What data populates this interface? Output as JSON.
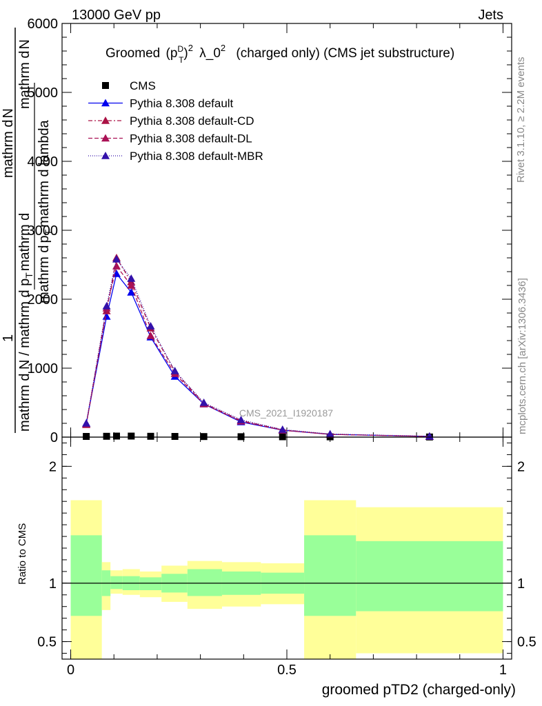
{
  "header": {
    "left": "13000 GeV pp",
    "right": "Jets"
  },
  "side": {
    "rivet": "Rivet 3.1.10, ≥ 2.2M events",
    "mcplots": "mcplots.cern.ch [arXiv:1306.3436]"
  },
  "main_ylabel": {
    "one": "1",
    "num1": "mathrm d",
    "num2": "N",
    "den": "mathrm d N / mathrm d p",
    "den_sub": "T",
    "den2": "mathrm d",
    "num3": "mathrm d",
    "num4": "N",
    "den3": "mathrm d",
    "den4": "p",
    "den5": "T",
    "den6": "mathrm d lambda"
  },
  "watermark": "CMS_2021_I1920187",
  "colors": {
    "cms": "#000000",
    "default": "#0000ee",
    "cd": "#aa1144",
    "dl": "#aa1155",
    "mbr": "#3311aa",
    "band_outer": "#ffff99",
    "band_inner": "#99ff99"
  },
  "chart_data": [
    {
      "type": "line",
      "title_parts": {
        "pre": "Groomed",
        "p": "p",
        "psup": "D",
        "psub": "T",
        "sq": "2",
        "lam": "λ_0",
        "lamsup": "2",
        "post": "(charged only) (CMS jet substructure)"
      },
      "xlabel": "",
      "ylabel": "",
      "xlim": [
        -0.02,
        1.02
      ],
      "ylim": [
        0,
        6000
      ],
      "yticks": [
        {
          "v": 0,
          "label": "0"
        },
        {
          "v": 1000,
          "label": "1000"
        },
        {
          "v": 2000,
          "label": "2000"
        },
        {
          "v": 3000,
          "label": "3000"
        },
        {
          "v": 4000,
          "label": "4000"
        },
        {
          "v": 5000,
          "label": "5000"
        },
        {
          "v": 6000,
          "label": "6000"
        }
      ],
      "x": [
        0.036,
        0.083,
        0.106,
        0.14,
        0.185,
        0.241,
        0.308,
        0.394,
        0.49,
        0.6,
        0.83
      ],
      "series": [
        {
          "name": "CMS",
          "key": "cms",
          "marker": "square",
          "values": [
            10,
            12,
            15,
            15,
            12,
            10,
            8,
            6,
            5,
            4,
            2
          ]
        },
        {
          "name": "Pythia 8.308 default",
          "key": "default",
          "marker": "triangle",
          "dash": "",
          "values": [
            200,
            1750,
            2370,
            2100,
            1450,
            880,
            480,
            220,
            100,
            40,
            10
          ]
        },
        {
          "name": "Pythia 8.308 default-CD",
          "key": "cd",
          "marker": "triangle",
          "dash": "6,3,2,3",
          "values": [
            180,
            1830,
            2600,
            2250,
            1580,
            950,
            490,
            240,
            105,
            40,
            10
          ]
        },
        {
          "name": "Pythia 8.308 default-DL",
          "key": "dl",
          "marker": "triangle",
          "dash": "6,3",
          "values": [
            190,
            1870,
            2480,
            2200,
            1470,
            920,
            480,
            230,
            100,
            40,
            10
          ]
        },
        {
          "name": "Pythia 8.308 default-MBR",
          "key": "mbr",
          "marker": "triangle",
          "dash": "1,2",
          "values": [
            200,
            1900,
            2580,
            2300,
            1610,
            960,
            500,
            250,
            110,
            45,
            12
          ]
        }
      ]
    },
    {
      "type": "area",
      "xlabel": "groomed pTD2 (charged-only)",
      "ylabel": "Ratio to CMS",
      "xlim": [
        -0.02,
        1.02
      ],
      "ylim": [
        0.35,
        2.25
      ],
      "xticks": [
        {
          "v": 0,
          "label": "0"
        },
        {
          "v": 0.5,
          "label": "0.5"
        },
        {
          "v": 1,
          "label": "1"
        }
      ],
      "yticks": [
        {
          "v": 0.5,
          "label": "0.5"
        },
        {
          "v": 1,
          "label": "1"
        },
        {
          "v": 2,
          "label": "2"
        }
      ],
      "bins": [
        {
          "lo": 0.0,
          "hi": 0.072,
          "outer": [
            0.35,
            1.71
          ],
          "inner": [
            0.72,
            1.41
          ]
        },
        {
          "lo": 0.072,
          "hi": 0.092,
          "outer": [
            0.77,
            1.18
          ],
          "inner": [
            0.89,
            1.11
          ]
        },
        {
          "lo": 0.092,
          "hi": 0.12,
          "outer": [
            0.91,
            1.11
          ],
          "inner": [
            0.95,
            1.06
          ]
        },
        {
          "lo": 0.12,
          "hi": 0.16,
          "outer": [
            0.9,
            1.12
          ],
          "inner": [
            0.94,
            1.06
          ]
        },
        {
          "lo": 0.16,
          "hi": 0.21,
          "outer": [
            0.88,
            1.1
          ],
          "inner": [
            0.94,
            1.05
          ]
        },
        {
          "lo": 0.21,
          "hi": 0.27,
          "outer": [
            0.84,
            1.15
          ],
          "inner": [
            0.92,
            1.08
          ]
        },
        {
          "lo": 0.27,
          "hi": 0.35,
          "outer": [
            0.78,
            1.19
          ],
          "inner": [
            0.89,
            1.12
          ]
        },
        {
          "lo": 0.35,
          "hi": 0.44,
          "outer": [
            0.8,
            1.18
          ],
          "inner": [
            0.9,
            1.1
          ]
        },
        {
          "lo": 0.44,
          "hi": 0.54,
          "outer": [
            0.82,
            1.17
          ],
          "inner": [
            0.91,
            1.09
          ]
        },
        {
          "lo": 0.54,
          "hi": 0.66,
          "outer": [
            0.35,
            1.71
          ],
          "inner": [
            0.72,
            1.41
          ]
        },
        {
          "lo": 0.66,
          "hi": 1.0,
          "outer": [
            0.4,
            1.65
          ],
          "inner": [
            0.76,
            1.36
          ]
        }
      ],
      "refline": 1
    }
  ]
}
